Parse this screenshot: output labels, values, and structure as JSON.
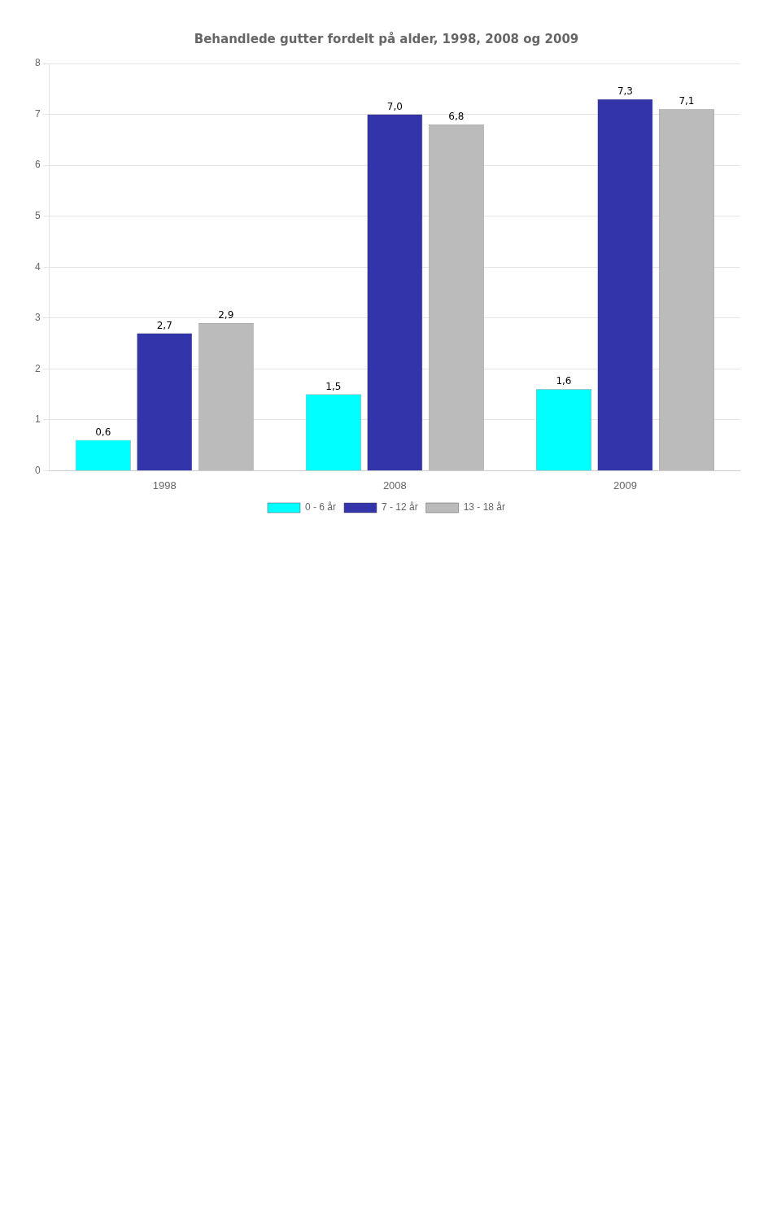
{
  "chart_data": {
    "type": "bar",
    "title": "Behandlede gutter fordelt på alder, 1998, 2008 og 2009",
    "categories": [
      "1998",
      "2008",
      "2009"
    ],
    "series": [
      {
        "name": "0 - 6 år",
        "color": "#00FFFF",
        "values": [
          0.6,
          1.5,
          1.6
        ],
        "value_labels": [
          "0,6",
          "1,5",
          "1,6"
        ]
      },
      {
        "name": "7 - 12 år",
        "color": "#3333AA",
        "values": [
          2.7,
          7.0,
          7.3
        ],
        "value_labels": [
          "2,7",
          "7,0",
          "7,3"
        ]
      },
      {
        "name": "13 - 18 år",
        "color": "#BBBBBB",
        "values": [
          2.9,
          6.8,
          7.1
        ],
        "value_labels": [
          "2,9",
          "6,8",
          "7,1"
        ]
      }
    ],
    "ylim": [
      0,
      8
    ],
    "yticks": [
      0,
      1,
      2,
      3,
      4,
      5,
      6,
      7,
      8
    ],
    "grid": true,
    "legend": "bottom",
    "data_labels": true
  }
}
